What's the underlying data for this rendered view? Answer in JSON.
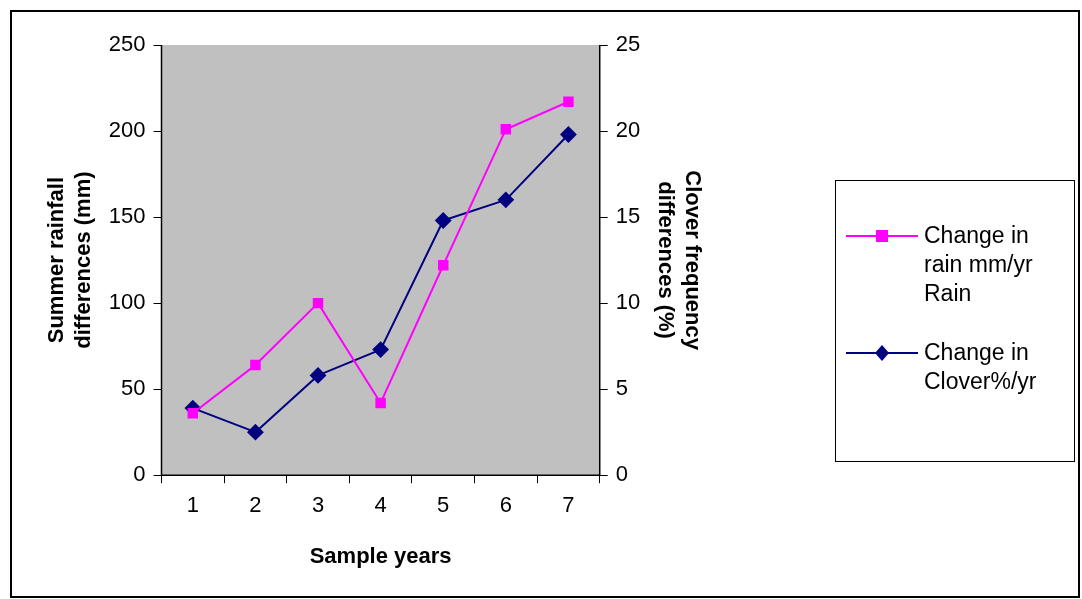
{
  "chart_data": {
    "type": "line",
    "xlabel": "Sample years",
    "ylabel": "Summer rainfall differences (mm)",
    "y2label": "Clover frequency differences (%)",
    "categories": [
      "1",
      "2",
      "3",
      "4",
      "5",
      "6",
      "7"
    ],
    "series": [
      {
        "name": "Change in rain mm/yr Rain",
        "color": "#ff00ff",
        "marker": "square",
        "values": [
          36,
          64,
          100,
          42,
          122,
          201,
          217
        ]
      },
      {
        "name": "Change in Clover%/yr",
        "color": "#000080",
        "marker": "diamond",
        "axis": "y2",
        "values": [
          3.9,
          2.5,
          5.8,
          7.3,
          14.8,
          16.0,
          19.8
        ]
      }
    ],
    "ylim": [
      0,
      250
    ],
    "yticks": [
      0,
      50,
      100,
      150,
      200,
      250
    ],
    "y2lim": [
      0,
      25
    ],
    "y2ticks": [
      0,
      5,
      10,
      15,
      20,
      25
    ],
    "grid": false,
    "legend": "right",
    "line_style": "solid"
  }
}
